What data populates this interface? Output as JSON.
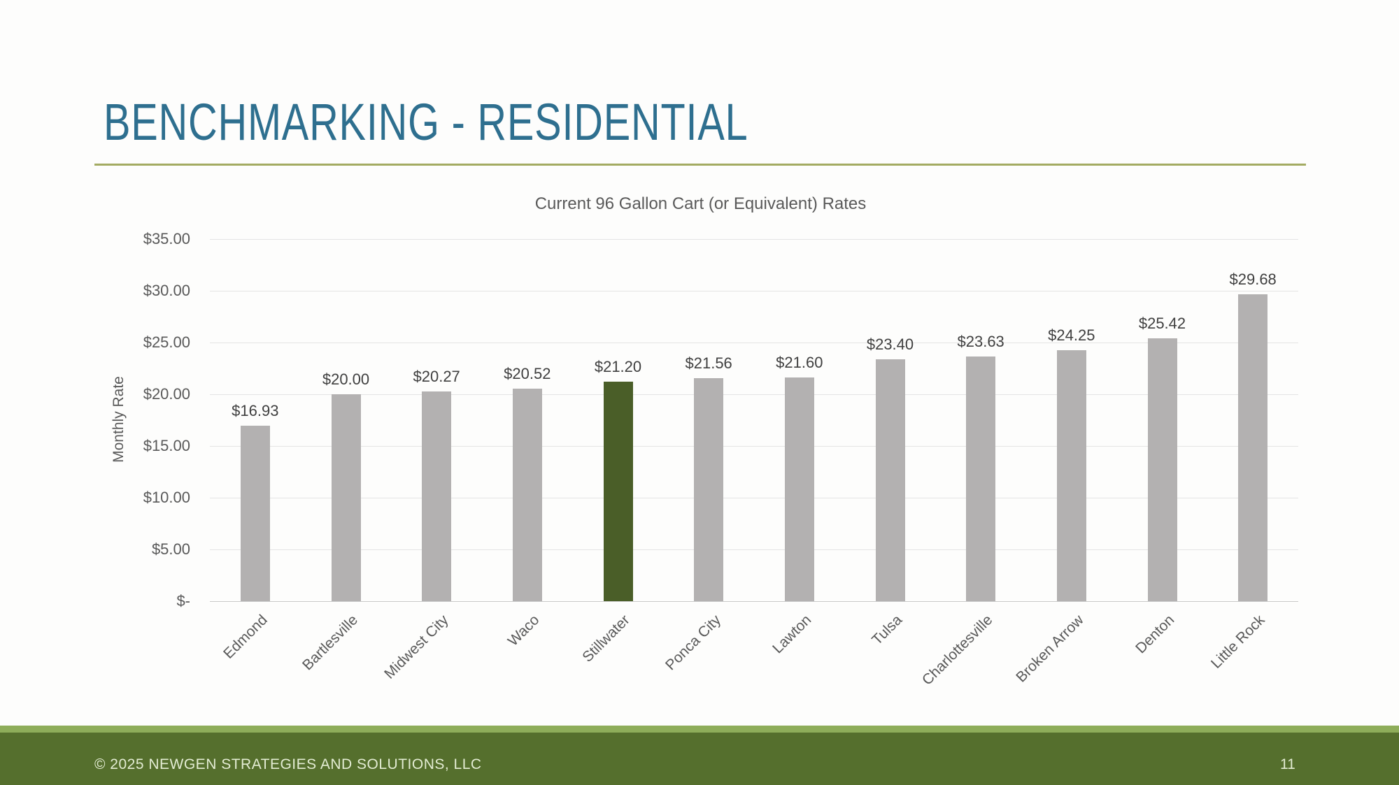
{
  "slide": {
    "title": "BENCHMARKING - RESIDENTIAL",
    "footer": {
      "copyright": "© 2025 NEWGEN STRATEGIES AND SOLUTIONS, LLC",
      "page_number": "11"
    }
  },
  "colors": {
    "title_teal": "#2e6f8f",
    "rule_olive": "#a3ab62",
    "footer_strip": "#8ead5a",
    "footer_band": "#556f2d",
    "footer_text": "#e3ecd3",
    "bar_gray": "#b3b1b1",
    "bar_green": "#4a5e28",
    "grid": "#e4e4e4",
    "axis_text": "#595959",
    "data_label": "#3f3f3f"
  },
  "chart_data": {
    "type": "bar",
    "title": "Current 96 Gallon Cart (or Equivalent) Rates",
    "xlabel": "",
    "ylabel": "Monthly Rate",
    "categories": [
      "Edmond",
      "Bartlesville",
      "Midwest City",
      "Waco",
      "Stillwater",
      "Ponca City",
      "Lawton",
      "Tulsa",
      "Charlottesville",
      "Broken Arrow",
      "Denton",
      "Little Rock"
    ],
    "values": [
      16.93,
      20.0,
      20.27,
      20.52,
      21.2,
      21.56,
      21.6,
      23.4,
      23.63,
      24.25,
      25.42,
      29.68
    ],
    "value_labels": [
      "$16.93",
      "$20.00",
      "$20.27",
      "$20.52",
      "$21.20",
      "$21.56",
      "$21.60",
      "$23.40",
      "$23.63",
      "$24.25",
      "$25.42",
      "$29.68"
    ],
    "highlight_category": "Stillwater",
    "highlight_index": 4,
    "bar_color": "#b3b1b1",
    "highlight_color": "#4a5e28",
    "ylim": [
      0,
      35
    ],
    "ytick_step": 5,
    "ytick_labels": [
      "$-",
      "$5.00",
      "$10.00",
      "$15.00",
      "$20.00",
      "$25.00",
      "$30.00",
      "$35.00"
    ],
    "grid": true,
    "legend": "none",
    "x_label_rotation": -45
  }
}
